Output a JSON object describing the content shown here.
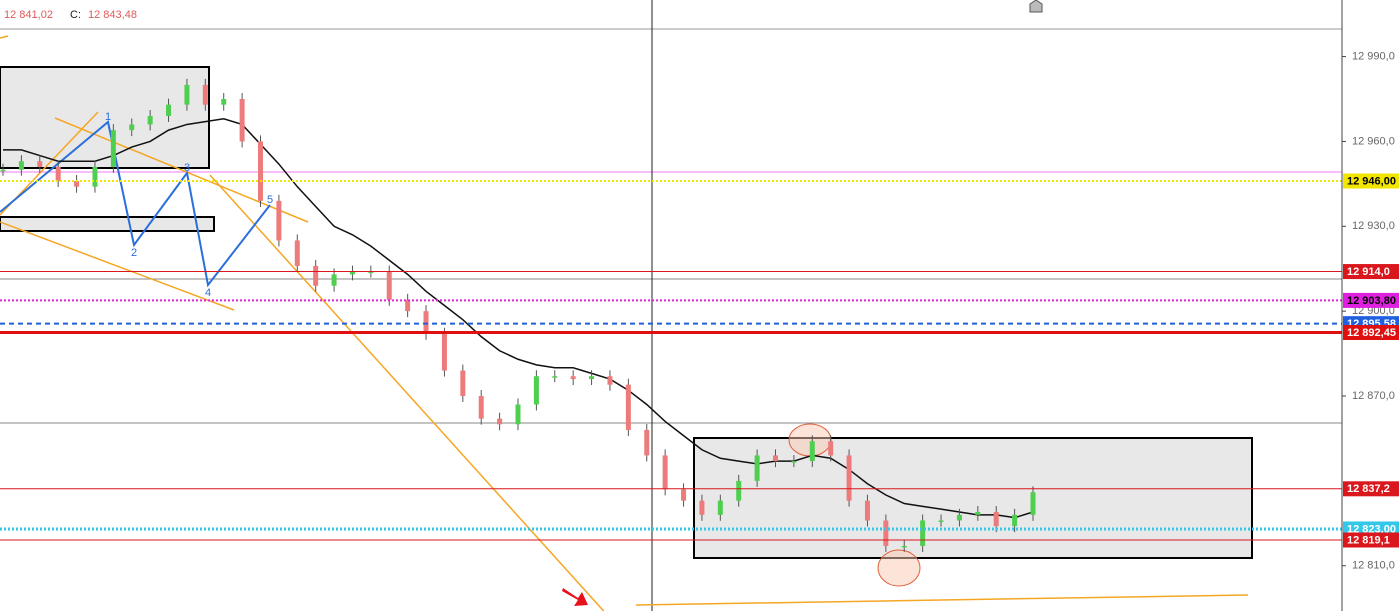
{
  "header": {
    "price": "12 841,02",
    "close_label": "C:",
    "close": "12 843,48"
  },
  "chart_data": {
    "type": "candlestick",
    "ylim": [
      12794,
      13010
    ],
    "yticks": [
      {
        "value": 12990,
        "label": "12 990,0"
      },
      {
        "value": 12960,
        "label": "12 960,0"
      },
      {
        "value": 12930,
        "label": "12 930,0"
      },
      {
        "value": 12900,
        "label": "12 900,0"
      },
      {
        "value": 12870,
        "label": "12 870,0"
      },
      {
        "value": 12810,
        "label": "12 810,0"
      }
    ],
    "up_color": "#4fcf4f",
    "down_color": "#ee7b7b",
    "values": [
      12950,
      12953,
      12951,
      12946,
      12944,
      12951,
      12964,
      12966,
      12969,
      12973,
      12980,
      12973,
      12975,
      12960,
      12939,
      12925,
      12916,
      12909,
      12913,
      12914,
      12914,
      12904,
      12900,
      12892,
      12879,
      12870,
      12862,
      12860,
      12867,
      12877,
      12877,
      12876,
      12877,
      12874,
      12858,
      12849,
      12837,
      12833,
      12828,
      12833,
      12840,
      12849,
      12847,
      12847,
      12854,
      12849,
      12833,
      12826,
      12817,
      12817,
      12826,
      12826,
      12828,
      12829,
      12824,
      12828,
      12836
    ],
    "moving_average": {
      "color": "#111111",
      "values": [
        12957,
        12957,
        12955,
        12953,
        12953,
        12953,
        12955,
        12958,
        12960,
        12964,
        12966,
        12967,
        12968,
        12966,
        12959,
        12952,
        12944,
        12937,
        12930,
        12927,
        12923,
        12918,
        12913,
        12907,
        12902,
        12897,
        12891,
        12886,
        12883,
        12881,
        12880,
        12880,
        12878,
        12876,
        12872,
        12867,
        12861,
        12856,
        12851,
        12848,
        12847,
        12846,
        12847,
        12847,
        12849,
        12848,
        12844,
        12839,
        12835,
        12832,
        12831,
        12830,
        12829,
        12828,
        12828,
        12827,
        12829
      ]
    },
    "levels": [
      {
        "value": 12946,
        "label": "12 946,00",
        "color": "#f2e600",
        "text_color": "#000000",
        "dash": "2,2",
        "width": 2
      },
      {
        "value": 12914,
        "label": "12 914,0",
        "color": "#d9171c",
        "text_color": "#ffffff",
        "dash": "none",
        "width": 1
      },
      {
        "value": 12903.8,
        "label": "12 903,80",
        "color": "#e020e0",
        "text_color": "#000000",
        "dash": "2,2",
        "width": 2
      },
      {
        "value": 12895.58,
        "label": "12 895,58",
        "color": "#1f5fe0",
        "text_color": "#ffffff",
        "dash": "5,4",
        "width": 2
      },
      {
        "value": 12892.45,
        "label": "12 892,45",
        "color": "#e01010",
        "text_color": "#ffffff",
        "dash": "none",
        "width": 3
      },
      {
        "value": 12837.2,
        "label": "12 837,2",
        "color": "#d9171c",
        "text_color": "#ffffff",
        "dash": "none",
        "width": 1
      },
      {
        "value": 12823,
        "label": "12 823,00",
        "color": "#33c8ea",
        "text_color": "#ffffff",
        "dash": "2,2",
        "width": 3
      },
      {
        "value": 12819.1,
        "label": "12 819,1",
        "color": "#d9171c",
        "text_color": "#ffffff",
        "dash": "none",
        "width": 1
      }
    ],
    "wave_labels": [
      "1",
      "2",
      "3",
      "4",
      "5"
    ]
  }
}
